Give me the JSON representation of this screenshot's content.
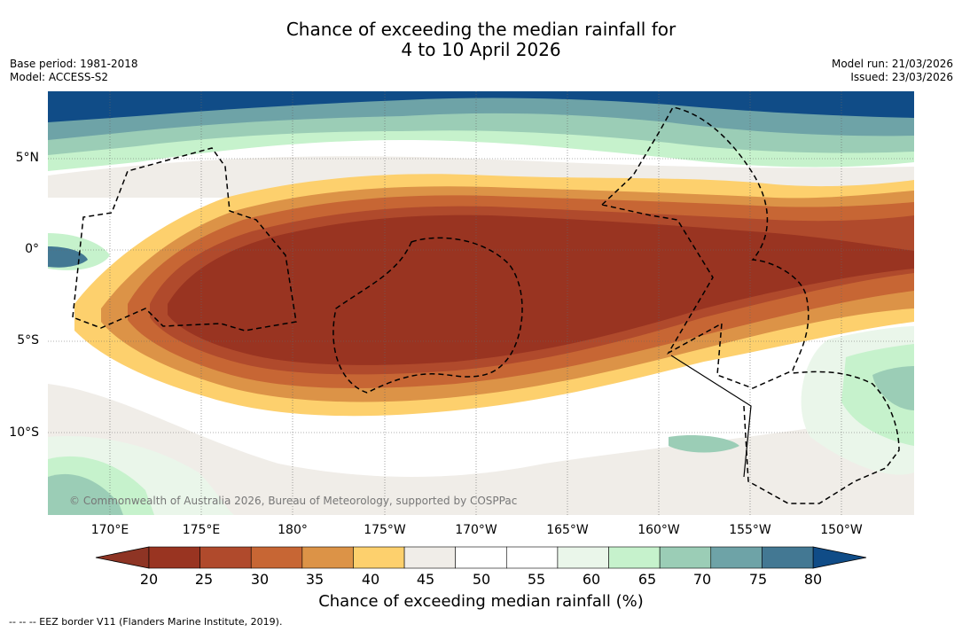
{
  "title": {
    "line1": "Chance of exceeding the median rainfall for",
    "line2": "4 to 10 April 2026"
  },
  "meta": {
    "base_period": "Base period: 1981-2018",
    "model": "Model: ACCESS-S2",
    "model_run": "Model run: 21/03/2026",
    "issued": "Issued: 23/03/2026"
  },
  "map": {
    "credit": "© Commonwealth of Australia 2026, Bureau of Meteorology, supported by COSPPac",
    "lat_labels": [
      "5°N",
      "0°",
      "5°S",
      "10°S"
    ],
    "lon_labels": [
      "170°E",
      "175°E",
      "180°",
      "175°W",
      "170°W",
      "165°W",
      "160°W",
      "155°W",
      "150°W"
    ]
  },
  "colorbar": {
    "ticks": [
      "20",
      "25",
      "30",
      "35",
      "40",
      "45",
      "50",
      "55",
      "60",
      "65",
      "70",
      "75",
      "80"
    ],
    "colors": [
      "#993421",
      "#b04a2c",
      "#c76634",
      "#dc9347",
      "#fdd06d",
      "#f0ede8",
      "#ffffff",
      "#ffffff",
      "#eaf6ea",
      "#c6f2cc",
      "#9bcdb6",
      "#6ea3a7",
      "#437893"
    ],
    "low_color": "#8e3424",
    "high_color": "#104c87",
    "title": "Chance of exceeding median rainfall (%)"
  },
  "footnote": "--  --  -- EEZ border V11 (Flanders Marine Institute, 2019)."
}
